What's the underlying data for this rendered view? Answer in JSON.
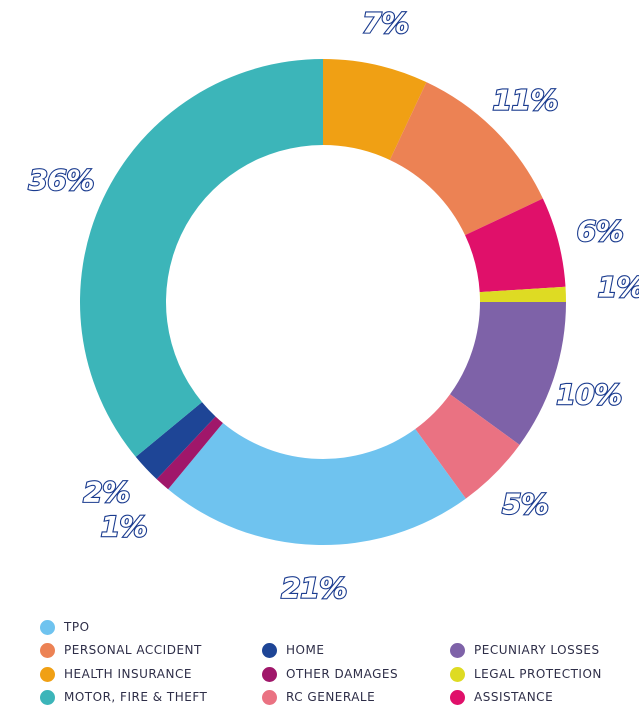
{
  "chart_data": {
    "type": "pie",
    "donut": true,
    "slices": [
      {
        "name": "HEALTH INSURANCE",
        "value": 7,
        "label": "7%",
        "color": "#f0a014"
      },
      {
        "name": "PERSONAL ACCIDENT",
        "value": 11,
        "label": "11%",
        "color": "#ec8254"
      },
      {
        "name": "ASSISTANCE",
        "value": 6,
        "label": "6%",
        "color": "#e0106a"
      },
      {
        "name": "LEGAL PROTECTION",
        "value": 1,
        "label": "1%",
        "color": "#dedb23"
      },
      {
        "name": "PECUNIARY LOSSES",
        "value": 10,
        "label": "10%",
        "color": "#7e62a8"
      },
      {
        "name": "RC GENERALE",
        "value": 5,
        "label": "5%",
        "color": "#ea7282"
      },
      {
        "name": "TPO",
        "value": 21,
        "label": "21%",
        "color": "#6fc3ef"
      },
      {
        "name": "OTHER DAMAGES",
        "value": 1,
        "label": "1%",
        "color": "#a0176a"
      },
      {
        "name": "HOME",
        "value": 2,
        "label": "2%",
        "color": "#1e4596"
      },
      {
        "name": "MOTOR, FIRE & THEFT",
        "value": 36,
        "label": "36%",
        "color": "#3cb5b9"
      }
    ],
    "legend": [
      {
        "label": "TPO",
        "color": "#6fc3ef"
      },
      {
        "label": "PERSONAL ACCIDENT",
        "color": "#ec8254"
      },
      {
        "label": "HOME",
        "color": "#1e4596"
      },
      {
        "label": "PECUNIARY LOSSES",
        "color": "#7e62a8"
      },
      {
        "label": "HEALTH INSURANCE",
        "color": "#f0a014"
      },
      {
        "label": "OTHER DAMAGES",
        "color": "#a0176a"
      },
      {
        "label": "LEGAL PROTECTION",
        "color": "#dedb23"
      },
      {
        "label": "MOTOR, FIRE & THEFT",
        "color": "#3cb5b9"
      },
      {
        "label": "RC GENERALE",
        "color": "#ea7282"
      },
      {
        "label": "ASSISTANCE",
        "color": "#e0106a"
      }
    ],
    "legend_placement": "bottom"
  }
}
